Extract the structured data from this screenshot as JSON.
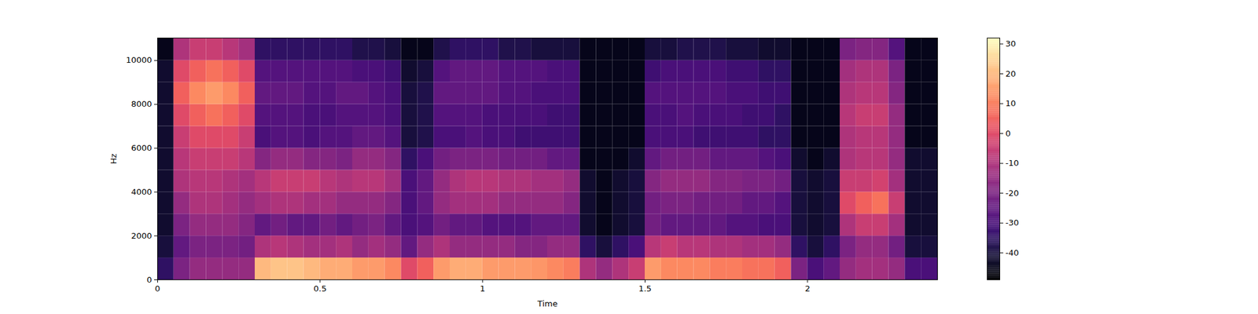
{
  "chart_data": {
    "type": "heatmap",
    "x_label": "Time",
    "y_label": "Hz",
    "color": "magma",
    "xlim": [
      0,
      2.4
    ],
    "ylim": [
      0,
      11025
    ],
    "xticks": [
      0,
      0.5,
      1,
      1.5,
      2
    ],
    "yticks": [
      0,
      2000,
      4000,
      6000,
      8000,
      10000
    ],
    "x_bins": [
      0,
      0.05,
      0.1,
      0.15,
      0.2,
      0.25,
      0.3,
      0.35,
      0.4,
      0.45,
      0.5,
      0.55,
      0.6,
      0.65,
      0.7,
      0.75,
      0.8,
      0.85,
      0.9,
      0.95,
      1,
      1.05,
      1.1,
      1.15,
      1.2,
      1.25,
      1.3,
      1.35,
      1.4,
      1.45,
      1.5,
      1.55,
      1.6,
      1.65,
      1.7,
      1.75,
      1.8,
      1.85,
      1.9,
      1.95,
      2,
      2.05,
      2.1,
      2.15,
      2.2,
      2.25,
      2.3,
      2.35,
      2.4
    ],
    "y_bins": [
      0,
      1000,
      2000,
      3000,
      4000,
      5000,
      6000,
      7000,
      8000,
      9000,
      10000,
      11025
    ],
    "cells": [
      [
        -35,
        -20,
        -15,
        -15,
        -15,
        -15,
        20,
        22,
        22,
        20,
        18,
        18,
        15,
        15,
        12,
        0,
        5,
        15,
        18,
        18,
        15,
        15,
        15,
        14,
        12,
        10,
        -10,
        -15,
        -10,
        -5,
        15,
        12,
        12,
        12,
        10,
        10,
        8,
        8,
        5,
        -20,
        -30,
        -25,
        -15,
        -12,
        -12,
        -15,
        -30,
        -30
      ],
      [
        -40,
        -25,
        -20,
        -20,
        -20,
        -22,
        -10,
        -8,
        -10,
        -12,
        -12,
        -10,
        -15,
        -12,
        -15,
        -25,
        -15,
        -10,
        -15,
        -15,
        -15,
        -15,
        -18,
        -18,
        -15,
        -15,
        -35,
        -40,
        -35,
        -30,
        -8,
        -5,
        -8,
        -8,
        -10,
        -10,
        -12,
        -12,
        -15,
        -35,
        -40,
        -35,
        -20,
        -15,
        -15,
        -22,
        -40,
        -40
      ],
      [
        -42,
        -20,
        -15,
        -15,
        -15,
        -18,
        -25,
        -22,
        -25,
        -25,
        -22,
        -25,
        -22,
        -20,
        -25,
        -30,
        -28,
        -22,
        -25,
        -25,
        -28,
        -28,
        -28,
        -25,
        -25,
        -25,
        -42,
        -45,
        -42,
        -40,
        -22,
        -25,
        -25,
        -25,
        -25,
        -28,
        -28,
        -30,
        -30,
        -40,
        -42,
        -40,
        -10,
        -5,
        -5,
        -12,
        -42,
        -42
      ],
      [
        -42,
        -15,
        -10,
        -10,
        -12,
        -15,
        -12,
        -10,
        -10,
        -12,
        -12,
        -15,
        -15,
        -15,
        -18,
        -30,
        -25,
        -15,
        -12,
        -12,
        -12,
        -15,
        -15,
        -15,
        -15,
        -18,
        -42,
        -45,
        -42,
        -40,
        -22,
        -20,
        -20,
        -22,
        -22,
        -22,
        -25,
        -25,
        -28,
        -40,
        -42,
        -40,
        0,
        5,
        8,
        -5,
        -42,
        -42
      ],
      [
        -42,
        -10,
        -8,
        -8,
        -10,
        -12,
        -8,
        -5,
        -5,
        -5,
        -8,
        -10,
        -8,
        -8,
        -12,
        -30,
        -25,
        -15,
        -10,
        -8,
        -8,
        -10,
        -10,
        -12,
        -12,
        -15,
        -42,
        -45,
        -42,
        -40,
        -18,
        -15,
        -15,
        -15,
        -18,
        -18,
        -20,
        -20,
        -22,
        -40,
        -42,
        -40,
        -5,
        -5,
        -3,
        -12,
        -42,
        -42
      ],
      [
        -42,
        -8,
        -5,
        -5,
        -5,
        -8,
        -18,
        -15,
        -15,
        -18,
        -18,
        -20,
        -15,
        -15,
        -18,
        -35,
        -30,
        -22,
        -20,
        -20,
        -20,
        -22,
        -22,
        -22,
        -25,
        -25,
        -45,
        -45,
        -45,
        -42,
        -25,
        -22,
        -22,
        -22,
        -25,
        -25,
        -25,
        -28,
        -30,
        -42,
        -45,
        -42,
        -10,
        -8,
        -8,
        -15,
        -42,
        -42
      ],
      [
        -42,
        -5,
        0,
        0,
        0,
        -5,
        -30,
        -28,
        -28,
        -30,
        -28,
        -28,
        -25,
        -25,
        -28,
        -40,
        -38,
        -30,
        -30,
        -28,
        -30,
        -30,
        -32,
        -32,
        -32,
        -32,
        -45,
        -45,
        -45,
        -45,
        -30,
        -30,
        -30,
        -32,
        -32,
        -32,
        -32,
        -35,
        -35,
        -45,
        -45,
        -45,
        -10,
        -8,
        -8,
        -15,
        -45,
        -45
      ],
      [
        -42,
        0,
        5,
        8,
        5,
        0,
        -28,
        -28,
        -28,
        -30,
        -30,
        -28,
        -28,
        -28,
        -30,
        -40,
        -38,
        -28,
        -28,
        -28,
        -30,
        -30,
        -30,
        -30,
        -32,
        -32,
        -45,
        -45,
        -45,
        -45,
        -30,
        -30,
        -28,
        -30,
        -30,
        -30,
        -32,
        -32,
        -35,
        -45,
        -45,
        -45,
        -8,
        -5,
        -5,
        -15,
        -45,
        -45
      ],
      [
        -42,
        5,
        12,
        15,
        12,
        5,
        -25,
        -25,
        -25,
        -28,
        -28,
        -25,
        -25,
        -28,
        -30,
        -40,
        -38,
        -25,
        -25,
        -25,
        -25,
        -28,
        -28,
        -30,
        -30,
        -30,
        -45,
        -45,
        -45,
        -45,
        -28,
        -28,
        -28,
        -28,
        -28,
        -30,
        -30,
        -32,
        -32,
        -45,
        -45,
        -45,
        -10,
        -8,
        -8,
        -18,
        -45,
        -45
      ],
      [
        -42,
        0,
        5,
        8,
        5,
        0,
        -28,
        -28,
        -28,
        -28,
        -28,
        -28,
        -30,
        -30,
        -32,
        -42,
        -40,
        -28,
        -25,
        -25,
        -25,
        -28,
        -28,
        -28,
        -30,
        -30,
        -45,
        -45,
        -45,
        -45,
        -32,
        -30,
        -30,
        -30,
        -30,
        -32,
        -32,
        -35,
        -35,
        -45,
        -45,
        -45,
        -12,
        -10,
        -10,
        -20,
        -45,
        -45
      ],
      [
        -45,
        -10,
        -5,
        -5,
        -8,
        -12,
        -35,
        -35,
        -35,
        -35,
        -35,
        -35,
        -38,
        -38,
        -40,
        -45,
        -45,
        -38,
        -35,
        -35,
        -35,
        -38,
        -38,
        -40,
        -40,
        -40,
        -45,
        -45,
        -45,
        -45,
        -40,
        -40,
        -38,
        -38,
        -38,
        -40,
        -40,
        -42,
        -42,
        -45,
        -45,
        -45,
        -20,
        -18,
        -18,
        -28,
        -45,
        -45
      ]
    ],
    "colorbar": {
      "range": [
        -49,
        32
      ],
      "ticks": [
        -40,
        -30,
        -20,
        -10,
        0,
        10,
        20,
        30
      ]
    }
  }
}
